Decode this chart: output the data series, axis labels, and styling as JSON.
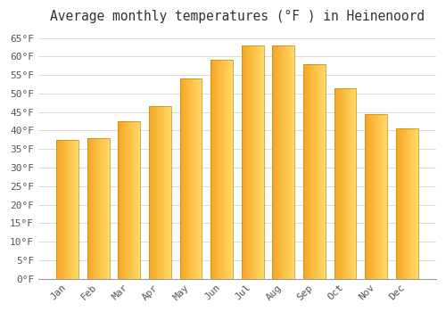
{
  "title": "Average monthly temperatures (°F ) in Heinenoord",
  "months": [
    "Jan",
    "Feb",
    "Mar",
    "Apr",
    "May",
    "Jun",
    "Jul",
    "Aug",
    "Sep",
    "Oct",
    "Nov",
    "Dec"
  ],
  "values": [
    37.5,
    38.0,
    42.5,
    46.5,
    54.0,
    59.0,
    63.0,
    63.0,
    58.0,
    51.5,
    44.5,
    40.5
  ],
  "bar_color_left": "#F5A623",
  "bar_color_right": "#FFD966",
  "bar_edge_color": "#C8860A",
  "ylim": [
    0,
    67
  ],
  "yticks": [
    0,
    5,
    10,
    15,
    20,
    25,
    30,
    35,
    40,
    45,
    50,
    55,
    60,
    65
  ],
  "background_color": "#FFFFFF",
  "plot_bg_color": "#FFFFFF",
  "grid_color": "#DDDDDD",
  "title_fontsize": 10.5,
  "tick_fontsize": 8,
  "title_color": "#333333",
  "tick_color": "#555555"
}
